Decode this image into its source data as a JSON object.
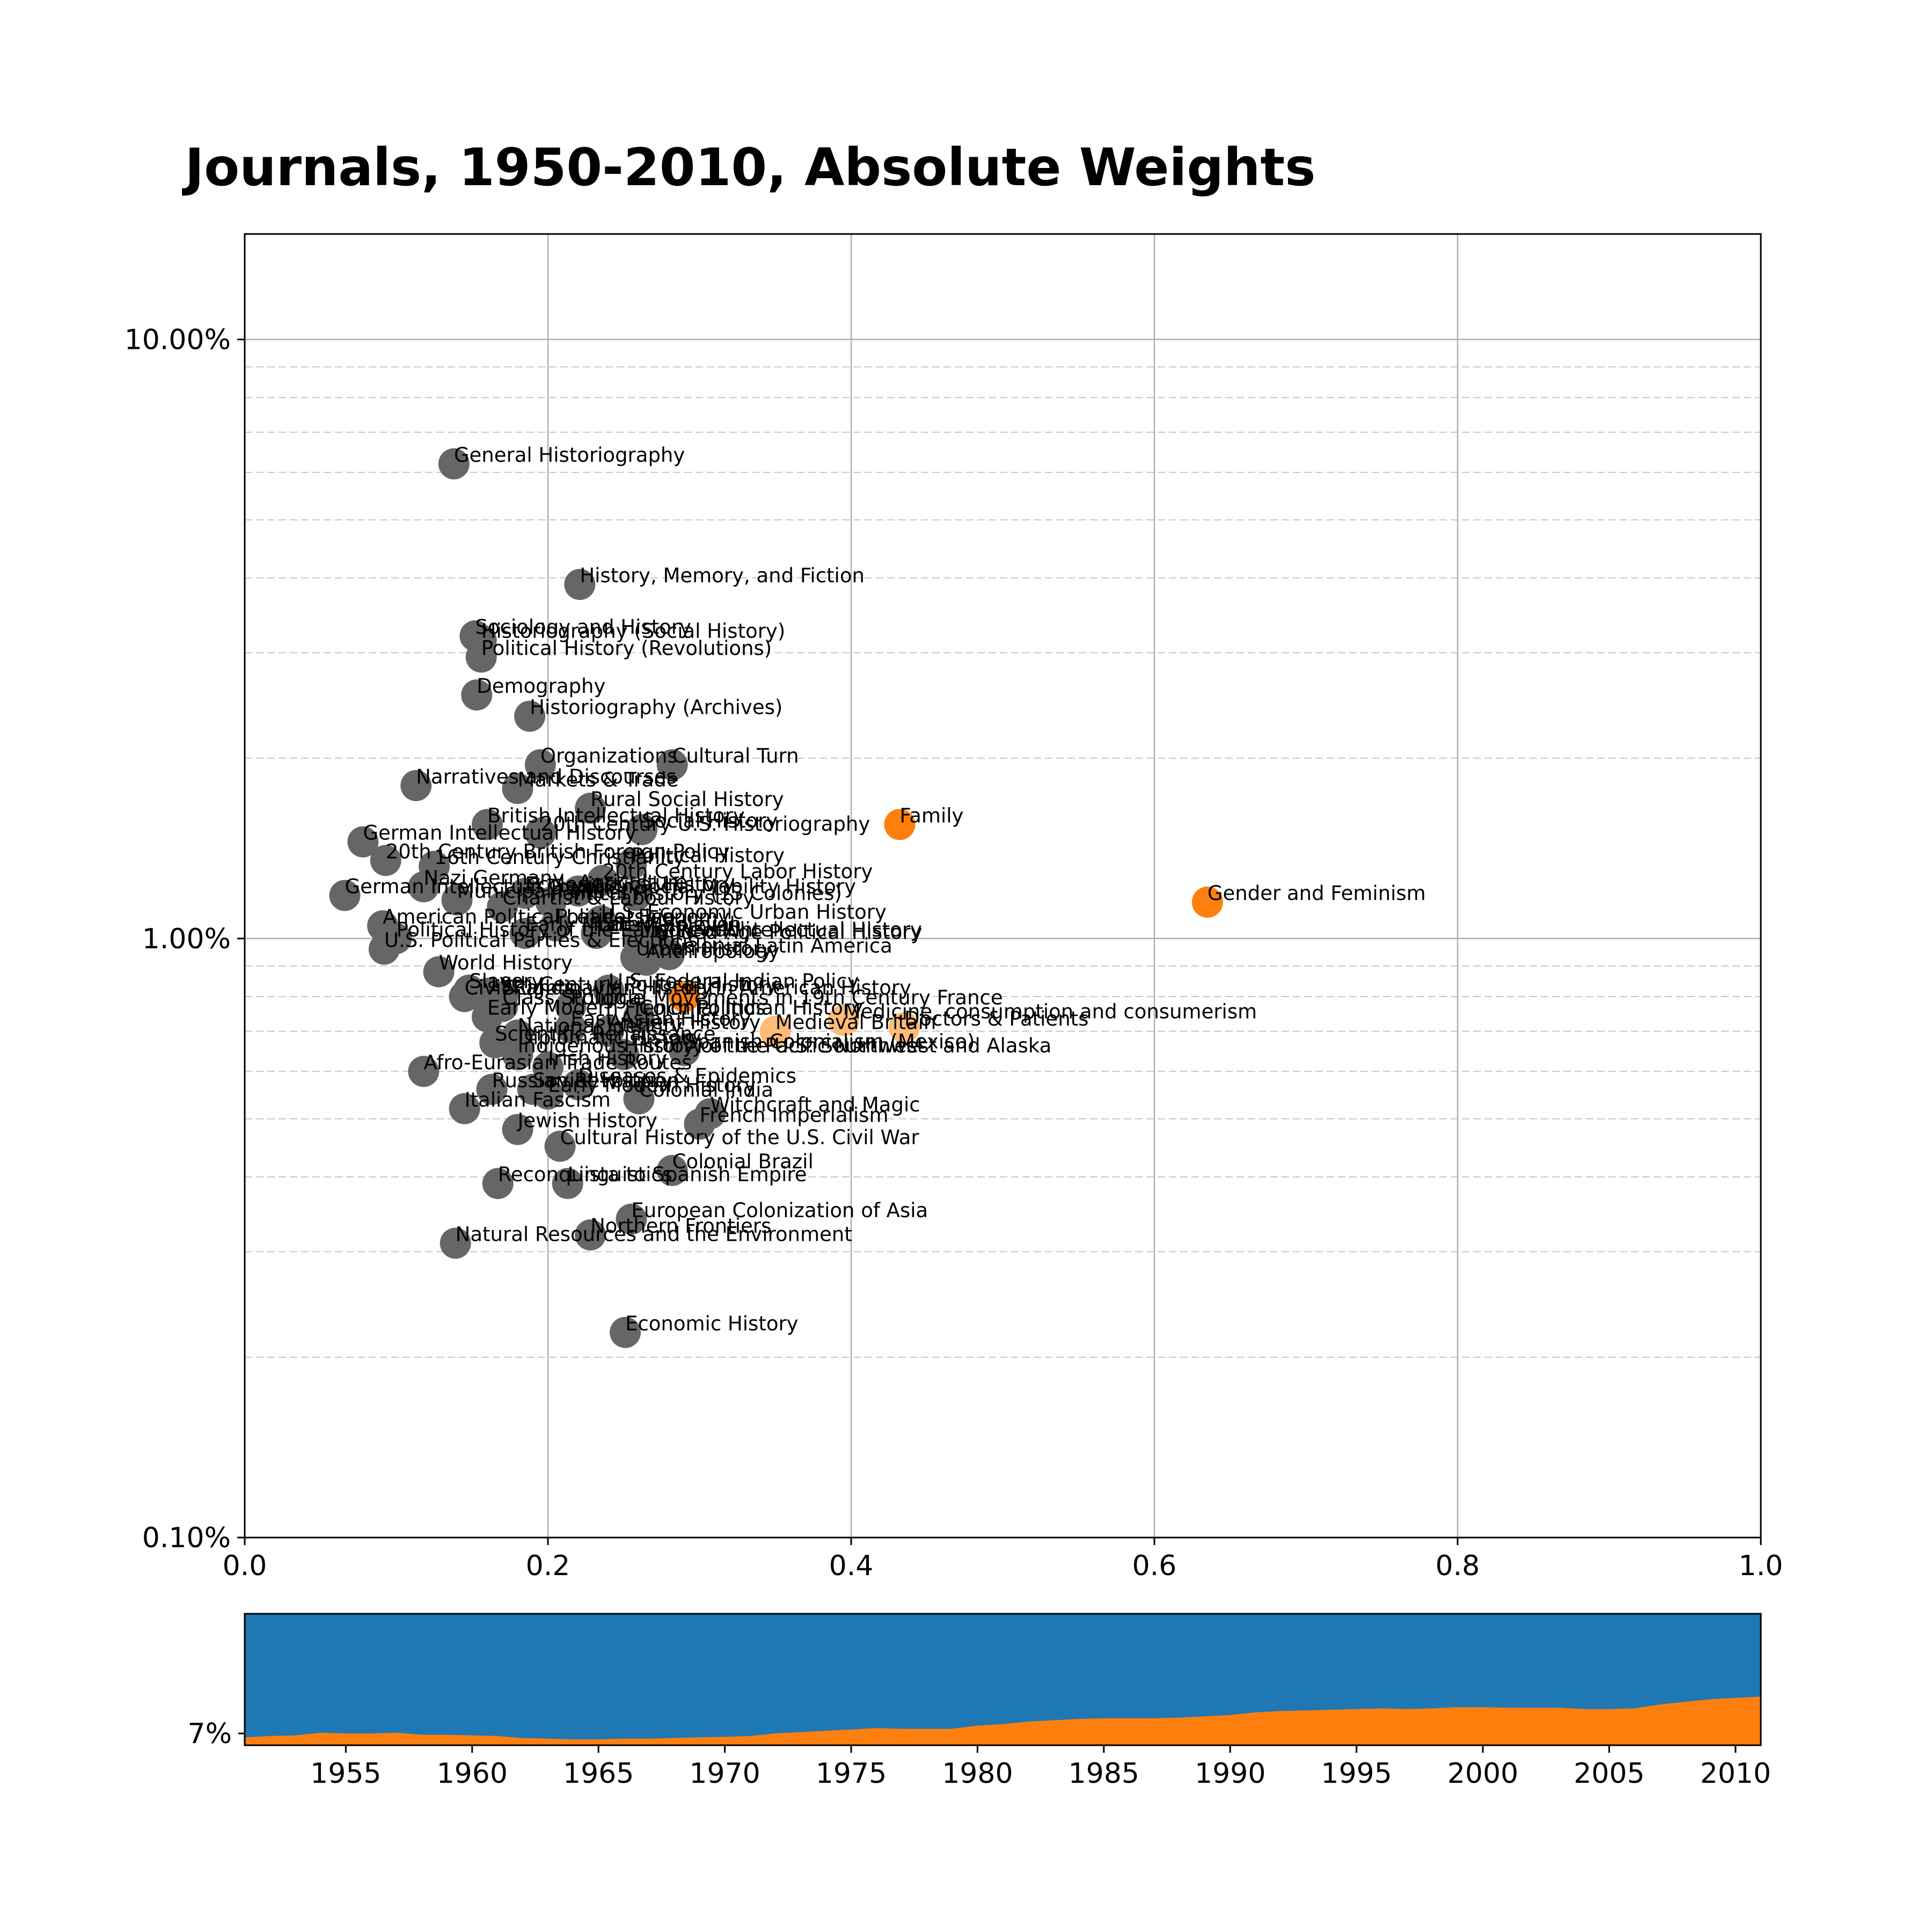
{
  "chart_data": [
    {
      "type": "scatter",
      "title": "Journals, 1950-2010, Absolute Weights",
      "xlim": [
        0.0,
        1.0
      ],
      "ylim": [
        0.1,
        15.0
      ],
      "y_scale": "log",
      "x_ticks": [
        "0.0",
        "0.2",
        "0.4",
        "0.6",
        "0.8",
        "1.0"
      ],
      "y_ticks": [
        {
          "value": 0.1,
          "label": "0.10%"
        },
        {
          "value": 1.0,
          "label": "1.00%"
        },
        {
          "value": 10.0,
          "label": "10.00%"
        }
      ],
      "grid": true,
      "colors": {
        "default": "#666666",
        "strong": "#ff7f0e",
        "light": "#ffbb78"
      },
      "points": [
        {
          "label": "General Historiography",
          "x": 0.138,
          "y": 6.2,
          "color": "default"
        },
        {
          "label": "History, Memory, and Fiction",
          "x": 0.221,
          "y": 3.9,
          "color": "default"
        },
        {
          "label": "Sociology and History",
          "x": 0.152,
          "y": 3.2,
          "color": "default"
        },
        {
          "label": "Historiography (Social History)",
          "x": 0.156,
          "y": 3.15,
          "color": "default"
        },
        {
          "label": "Political History (Revolutions)",
          "x": 0.156,
          "y": 2.95,
          "color": "default"
        },
        {
          "label": "Demography",
          "x": 0.153,
          "y": 2.55,
          "color": "default"
        },
        {
          "label": "Historiography (Archives)",
          "x": 0.188,
          "y": 2.35,
          "color": "default"
        },
        {
          "label": "Organizations",
          "x": 0.195,
          "y": 1.95,
          "color": "default"
        },
        {
          "label": "Cultural Turn",
          "x": 0.282,
          "y": 1.95,
          "color": "default"
        },
        {
          "label": "Narratives and Discourses",
          "x": 0.113,
          "y": 1.8,
          "color": "default"
        },
        {
          "label": "Markets & Trade",
          "x": 0.18,
          "y": 1.78,
          "color": "default"
        },
        {
          "label": "Rural Social History",
          "x": 0.228,
          "y": 1.65,
          "color": "default"
        },
        {
          "label": "Family",
          "x": 0.432,
          "y": 1.55,
          "color": "strong"
        },
        {
          "label": "British Intellectual History",
          "x": 0.16,
          "y": 1.55,
          "color": "default"
        },
        {
          "label": "Social History",
          "x": 0.262,
          "y": 1.52,
          "color": "default"
        },
        {
          "label": "20th Century U.S. Historiography",
          "x": 0.195,
          "y": 1.5,
          "color": "default"
        },
        {
          "label": "German Intellectual History",
          "x": 0.078,
          "y": 1.45,
          "color": "default"
        },
        {
          "label": "20th Century British Foreign Policy",
          "x": 0.093,
          "y": 1.35,
          "color": "default"
        },
        {
          "label": "Political History",
          "x": 0.255,
          "y": 1.33,
          "color": "default"
        },
        {
          "label": "16th Century Christianity",
          "x": 0.125,
          "y": 1.32,
          "color": "default"
        },
        {
          "label": "20th Century Labor History",
          "x": 0.236,
          "y": 1.25,
          "color": "default"
        },
        {
          "label": "Nazi Germany",
          "x": 0.118,
          "y": 1.22,
          "color": "default"
        },
        {
          "label": "Agriculture",
          "x": 0.22,
          "y": 1.2,
          "color": "default"
        },
        {
          "label": "Ecclesiastical History",
          "x": 0.185,
          "y": 1.19,
          "color": "default"
        },
        {
          "label": "Social Mobility History",
          "x": 0.258,
          "y": 1.18,
          "color": "default"
        },
        {
          "label": "German Intellectual Tradition",
          "x": 0.066,
          "y": 1.18,
          "color": "default"
        },
        {
          "label": "Gender and Feminism",
          "x": 0.635,
          "y": 1.15,
          "color": "strong"
        },
        {
          "label": "Municipal Politics",
          "x": 0.14,
          "y": 1.16,
          "color": "default"
        },
        {
          "label": "Political History (13 Colonies)",
          "x": 0.202,
          "y": 1.15,
          "color": "default"
        },
        {
          "label": "Chartist & Labour History",
          "x": 0.17,
          "y": 1.13,
          "color": "default"
        },
        {
          "label": "U.S. Economic Urban History",
          "x": 0.235,
          "y": 1.07,
          "color": "default"
        },
        {
          "label": "American Political Leadership",
          "x": 0.091,
          "y": 1.05,
          "color": "default"
        },
        {
          "label": "Political Economy",
          "x": 0.205,
          "y": 1.05,
          "color": "default"
        },
        {
          "label": "Political History of the Early Republic",
          "x": 0.1,
          "y": 1.0,
          "color": "default"
        },
        {
          "label": "Early Modern Religion",
          "x": 0.185,
          "y": 1.02,
          "color": "default"
        },
        {
          "label": "Late Medieval",
          "x": 0.232,
          "y": 1.02,
          "color": "default"
        },
        {
          "label": "Medieval Intellectual History",
          "x": 0.26,
          "y": 1.0,
          "color": "default"
        },
        {
          "label": "U.S. Political Parties & Elections",
          "x": 0.092,
          "y": 0.96,
          "color": "default"
        },
        {
          "label": "Gilded Age Political History",
          "x": 0.27,
          "y": 0.99,
          "color": "default"
        },
        {
          "label": "Colonial Latin America",
          "x": 0.28,
          "y": 0.94,
          "color": "default"
        },
        {
          "label": "Anthropology",
          "x": 0.265,
          "y": 0.92,
          "color": "default"
        },
        {
          "label": "Urban History",
          "x": 0.258,
          "y": 0.93,
          "color": "default"
        },
        {
          "label": "World History",
          "x": 0.128,
          "y": 0.88,
          "color": "default"
        },
        {
          "label": "U.S. Federal Indian Policy",
          "x": 0.24,
          "y": 0.82,
          "color": "default"
        },
        {
          "label": "Slavery",
          "x": 0.148,
          "y": 0.82,
          "color": "default"
        },
        {
          "label": "19th Century Political History",
          "x": 0.16,
          "y": 0.81,
          "color": "default"
        },
        {
          "label": "Latin American History",
          "x": 0.29,
          "y": 0.8,
          "color": "strong"
        },
        {
          "label": "Civil Rights",
          "x": 0.145,
          "y": 0.8,
          "color": "default"
        },
        {
          "label": "Scandinavian History",
          "x": 0.17,
          "y": 0.8,
          "color": "default"
        },
        {
          "label": "Political Movements in 19th Century France",
          "x": 0.215,
          "y": 0.77,
          "color": "default"
        },
        {
          "label": "Class Struggle",
          "x": 0.17,
          "y": 0.77,
          "color": "default"
        },
        {
          "label": "Early Modern French Politics",
          "x": 0.16,
          "y": 0.74,
          "color": "default"
        },
        {
          "label": "Colonial Indian History",
          "x": 0.26,
          "y": 0.74,
          "color": "default"
        },
        {
          "label": "Medicine, consumption and consumerism",
          "x": 0.395,
          "y": 0.73,
          "color": "light"
        },
        {
          "label": "Doctors & Patients",
          "x": 0.435,
          "y": 0.71,
          "color": "light"
        },
        {
          "label": "Medieval Britain",
          "x": 0.35,
          "y": 0.7,
          "color": "light"
        },
        {
          "label": "East Asian History",
          "x": 0.215,
          "y": 0.71,
          "color": "default"
        },
        {
          "label": "Ancient History",
          "x": 0.24,
          "y": 0.7,
          "color": "default"
        },
        {
          "label": "National Identity",
          "x": 0.18,
          "y": 0.69,
          "color": "default"
        },
        {
          "label": "Scientific Renaissance",
          "x": 0.165,
          "y": 0.67,
          "color": "default"
        },
        {
          "label": "Diplomatic History",
          "x": 0.18,
          "y": 0.66,
          "color": "default"
        },
        {
          "label": "Spanish Colonialism (Mexico)",
          "x": 0.29,
          "y": 0.65,
          "color": "default"
        },
        {
          "label": "History of the Pacific Northwest and Alaska",
          "x": 0.25,
          "y": 0.64,
          "color": "default"
        },
        {
          "label": "Indigenous History of the U.S. Southwest",
          "x": 0.18,
          "y": 0.64,
          "color": "default"
        },
        {
          "label": "Afro-Eurasian Trade Routes",
          "x": 0.118,
          "y": 0.6,
          "color": "default"
        },
        {
          "label": "Irish History",
          "x": 0.2,
          "y": 0.61,
          "color": "default"
        },
        {
          "label": "Diseases & Epidemics",
          "x": 0.22,
          "y": 0.57,
          "color": "default"
        },
        {
          "label": "Russian Revolution",
          "x": 0.163,
          "y": 0.56,
          "color": "default"
        },
        {
          "label": "Soviet History",
          "x": 0.19,
          "y": 0.56,
          "color": "default"
        },
        {
          "label": "Early Modern History",
          "x": 0.2,
          "y": 0.55,
          "color": "default"
        },
        {
          "label": "Colonial India",
          "x": 0.26,
          "y": 0.54,
          "color": "default"
        },
        {
          "label": "Italian Fascism",
          "x": 0.145,
          "y": 0.52,
          "color": "default"
        },
        {
          "label": "Witchcraft and Magic",
          "x": 0.307,
          "y": 0.51,
          "color": "default"
        },
        {
          "label": "French Imperialism",
          "x": 0.3,
          "y": 0.49,
          "color": "default"
        },
        {
          "label": "Jewish History",
          "x": 0.18,
          "y": 0.48,
          "color": "default"
        },
        {
          "label": "Cultural History of the U.S. Civil War",
          "x": 0.208,
          "y": 0.45,
          "color": "default"
        },
        {
          "label": "Colonial Brazil",
          "x": 0.282,
          "y": 0.41,
          "color": "default"
        },
        {
          "label": "Linguistics",
          "x": 0.213,
          "y": 0.39,
          "color": "default"
        },
        {
          "label": "Reconquista to Spanish Empire",
          "x": 0.167,
          "y": 0.39,
          "color": "default"
        },
        {
          "label": "European Colonization of Asia",
          "x": 0.255,
          "y": 0.34,
          "color": "default"
        },
        {
          "label": "Northern Frontiers",
          "x": 0.228,
          "y": 0.32,
          "color": "default"
        },
        {
          "label": "Natural Resources and the Environment",
          "x": 0.139,
          "y": 0.31,
          "color": "default"
        },
        {
          "label": "Economic History",
          "x": 0.251,
          "y": 0.22,
          "color": "default"
        }
      ]
    },
    {
      "type": "area",
      "y_tick": "7%",
      "x_ticks": [
        "1955",
        "1960",
        "1965",
        "1970",
        "1975",
        "1980",
        "1985",
        "1990",
        "1995",
        "2000",
        "2005",
        "2010"
      ],
      "xlim": [
        1951,
        2011
      ],
      "ylim": [
        0,
        100
      ],
      "colors": {
        "top": "#1f77b4",
        "bottom": "#ff7f0e"
      },
      "x": [
        1951,
        1952,
        1953,
        1954,
        1955,
        1956,
        1957,
        1958,
        1959,
        1960,
        1961,
        1962,
        1963,
        1964,
        1965,
        1966,
        1967,
        1968,
        1969,
        1970,
        1971,
        1972,
        1973,
        1974,
        1975,
        1976,
        1977,
        1978,
        1979,
        1980,
        1981,
        1982,
        1983,
        1984,
        1985,
        1986,
        1987,
        1988,
        1989,
        1990,
        1991,
        1992,
        1993,
        1994,
        1995,
        1996,
        1997,
        1998,
        1999,
        2000,
        2001,
        2002,
        2003,
        2004,
        2005,
        2006,
        2007,
        2008,
        2009,
        2010,
        2011
      ],
      "values": [
        6,
        7,
        7.5,
        9.5,
        9,
        9,
        9.5,
        8,
        8,
        7.5,
        7,
        5.5,
        5,
        4.5,
        4.5,
        5,
        5,
        5.5,
        6,
        6.5,
        7,
        9,
        10,
        11,
        12,
        13,
        12.5,
        12.5,
        12.5,
        15,
        16,
        18,
        19,
        20,
        20.5,
        20.5,
        20.5,
        21,
        22,
        23,
        25,
        26,
        26.5,
        27,
        27.5,
        28,
        27.5,
        28,
        29,
        29,
        28.5,
        28.5,
        28.5,
        27.5,
        27.5,
        28,
        31,
        33,
        35,
        36,
        37
      ]
    }
  ]
}
